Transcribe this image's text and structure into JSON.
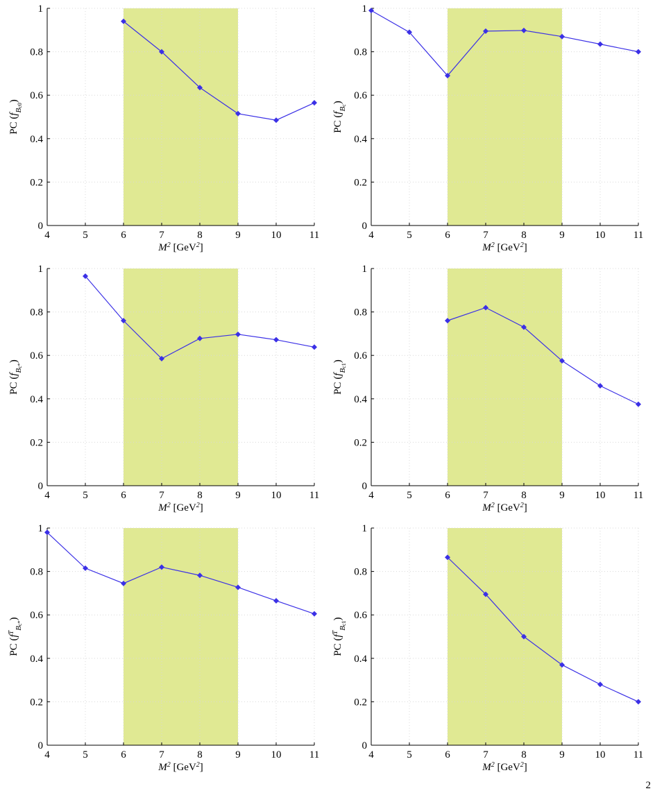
{
  "chart_data": [
    {
      "type": "line",
      "ylabel": [
        {
          "text": "PC ("
        },
        {
          "text": "f",
          "style": "var"
        },
        {
          "text": "B",
          "style": "sub"
        },
        {
          "text": "c0",
          "style": "subsub"
        },
        {
          "text": ")"
        }
      ],
      "xlabel": [
        {
          "text": "M",
          "style": "var"
        },
        {
          "text": "2",
          "style": "sup"
        },
        {
          "text": " [GeV"
        },
        {
          "text": "2",
          "style": "sup"
        },
        {
          "text": "]"
        }
      ],
      "x": [
        6,
        7,
        8,
        9,
        10,
        11
      ],
      "values": [
        0.94,
        0.8,
        0.635,
        0.515,
        0.485,
        0.565
      ],
      "color": "#3b30e6",
      "band": [
        6,
        9
      ],
      "band_color": "#e0e993",
      "xlim": [
        4,
        11
      ],
      "xticks": [
        4,
        5,
        6,
        7,
        8,
        9,
        10,
        11
      ],
      "ylim": [
        0,
        1
      ],
      "yticks": [
        0,
        0.2,
        0.4,
        0.6,
        0.8,
        1
      ],
      "grid": true
    },
    {
      "type": "line",
      "ylabel": [
        {
          "text": "PC ("
        },
        {
          "text": "f",
          "style": "var"
        },
        {
          "text": "B",
          "style": "sub"
        },
        {
          "text": "c",
          "style": "subsub"
        },
        {
          "text": ")"
        }
      ],
      "xlabel": [
        {
          "text": "M",
          "style": "var"
        },
        {
          "text": "2",
          "style": "sup"
        },
        {
          "text": " [GeV"
        },
        {
          "text": "2",
          "style": "sup"
        },
        {
          "text": "]"
        }
      ],
      "x": [
        4,
        5,
        6,
        7,
        8,
        9,
        10,
        11
      ],
      "values": [
        0.99,
        0.89,
        0.69,
        0.895,
        0.898,
        0.87,
        0.835,
        0.8
      ],
      "color": "#3b30e6",
      "band": [
        6,
        9
      ],
      "band_color": "#e0e993",
      "xlim": [
        4,
        11
      ],
      "xticks": [
        4,
        5,
        6,
        7,
        8,
        9,
        10,
        11
      ],
      "ylim": [
        0,
        1
      ],
      "yticks": [
        0,
        0.2,
        0.4,
        0.6,
        0.8,
        1
      ],
      "grid": true
    },
    {
      "type": "line",
      "ylabel": [
        {
          "text": "PC ("
        },
        {
          "text": "f",
          "style": "var"
        },
        {
          "text": "B",
          "style": "sub"
        },
        {
          "text": "c*",
          "style": "subsub"
        },
        {
          "text": ")"
        }
      ],
      "xlabel": [
        {
          "text": "M",
          "style": "var"
        },
        {
          "text": "2",
          "style": "sup"
        },
        {
          "text": " [GeV"
        },
        {
          "text": "2",
          "style": "sup"
        },
        {
          "text": "]"
        }
      ],
      "x": [
        5,
        6,
        7,
        8,
        9,
        10,
        11
      ],
      "values": [
        0.965,
        0.76,
        0.585,
        0.678,
        0.697,
        0.672,
        0.638
      ],
      "color": "#3b30e6",
      "band": [
        6,
        9
      ],
      "band_color": "#e0e993",
      "xlim": [
        4,
        11
      ],
      "xticks": [
        4,
        5,
        6,
        7,
        8,
        9,
        10,
        11
      ],
      "ylim": [
        0,
        1
      ],
      "yticks": [
        0,
        0.2,
        0.4,
        0.6,
        0.8,
        1
      ],
      "grid": true
    },
    {
      "type": "line",
      "ylabel": [
        {
          "text": "PC ("
        },
        {
          "text": "f",
          "style": "var"
        },
        {
          "text": "B",
          "style": "sub"
        },
        {
          "text": "c1",
          "style": "subsub"
        },
        {
          "text": ")"
        }
      ],
      "xlabel": [
        {
          "text": "M",
          "style": "var"
        },
        {
          "text": "2",
          "style": "sup"
        },
        {
          "text": " [GeV"
        },
        {
          "text": "2",
          "style": "sup"
        },
        {
          "text": "]"
        }
      ],
      "x": [
        6,
        7,
        8,
        9,
        10,
        11
      ],
      "values": [
        0.76,
        0.82,
        0.73,
        0.575,
        0.46,
        0.375
      ],
      "color": "#3b30e6",
      "band": [
        6,
        9
      ],
      "band_color": "#e0e993",
      "xlim": [
        4,
        11
      ],
      "xticks": [
        4,
        5,
        6,
        7,
        8,
        9,
        10,
        11
      ],
      "ylim": [
        0,
        1
      ],
      "yticks": [
        0,
        0.2,
        0.4,
        0.6,
        0.8,
        1
      ],
      "grid": true
    },
    {
      "type": "line",
      "ylabel": [
        {
          "text": "PC ("
        },
        {
          "text": "f",
          "style": "var"
        },
        {
          "text": "T",
          "style": "sup"
        },
        {
          "text": "B",
          "style": "sub"
        },
        {
          "text": "c*",
          "style": "subsub"
        },
        {
          "text": ")"
        }
      ],
      "xlabel": [
        {
          "text": "M",
          "style": "var"
        },
        {
          "text": "2",
          "style": "sup"
        },
        {
          "text": " [GeV"
        },
        {
          "text": "2",
          "style": "sup"
        },
        {
          "text": "]"
        }
      ],
      "x": [
        4,
        5,
        6,
        7,
        8,
        9,
        10,
        11
      ],
      "values": [
        0.98,
        0.815,
        0.745,
        0.82,
        0.782,
        0.727,
        0.665,
        0.605
      ],
      "color": "#3b30e6",
      "band": [
        6,
        9
      ],
      "band_color": "#e0e993",
      "xlim": [
        4,
        11
      ],
      "xticks": [
        4,
        5,
        6,
        7,
        8,
        9,
        10,
        11
      ],
      "ylim": [
        0,
        1
      ],
      "yticks": [
        0,
        0.2,
        0.4,
        0.6,
        0.8,
        1
      ],
      "grid": true
    },
    {
      "type": "line",
      "ylabel": [
        {
          "text": "PC ("
        },
        {
          "text": "f",
          "style": "var"
        },
        {
          "text": "T",
          "style": "sup"
        },
        {
          "text": "B",
          "style": "sub"
        },
        {
          "text": "c1",
          "style": "subsub"
        },
        {
          "text": ")"
        }
      ],
      "xlabel": [
        {
          "text": "M",
          "style": "var"
        },
        {
          "text": "2",
          "style": "sup"
        },
        {
          "text": " [GeV"
        },
        {
          "text": "2",
          "style": "sup"
        },
        {
          "text": "]"
        }
      ],
      "x": [
        6,
        7,
        8,
        9,
        10,
        11
      ],
      "values": [
        0.865,
        0.695,
        0.5,
        0.37,
        0.28,
        0.2
      ],
      "color": "#3b30e6",
      "band": [
        6,
        9
      ],
      "band_color": "#e0e993",
      "xlim": [
        4,
        11
      ],
      "xticks": [
        4,
        5,
        6,
        7,
        8,
        9,
        10,
        11
      ],
      "ylim": [
        0,
        1
      ],
      "yticks": [
        0,
        0.2,
        0.4,
        0.6,
        0.8,
        1
      ],
      "grid": true
    }
  ],
  "corner_text": "2"
}
